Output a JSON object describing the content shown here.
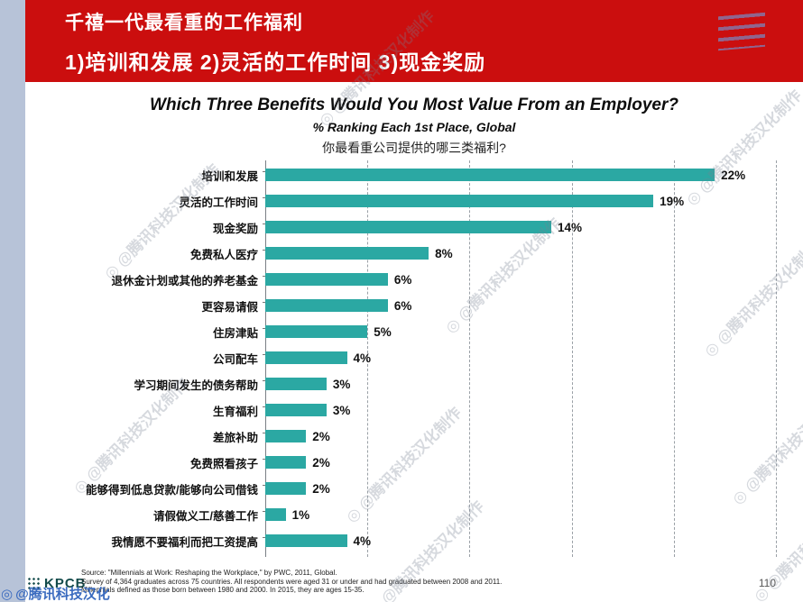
{
  "header": {
    "title": "千禧一代最看重的工作福利",
    "subtitle": "1)培训和发展 2)灵活的工作时间 3)现金奖励"
  },
  "chart": {
    "title": "Which Three Benefits Would You Most Value From an Employer?",
    "subtitle": "% Ranking Each 1st Place, Global",
    "subtitle_cn": "你最看重公司提供的哪三类福利?"
  },
  "chart_data": {
    "type": "bar",
    "orientation": "horizontal",
    "title": "Which Three Benefits Would You Most Value From an Employer?",
    "subtitle": "% Ranking Each 1st Place, Global",
    "categories": [
      "培训和发展",
      "灵活的工作时间",
      "现金奖励",
      "免费私人医疗",
      "退休金计划或其他的养老基金",
      "更容易请假",
      "住房津贴",
      "公司配车",
      "学习期间发生的债务帮助",
      "生育福利",
      "差旅补助",
      "免费照看孩子",
      "能够得到低息贷款/能够向公司借钱",
      "请假做义工/慈善工作",
      "我情愿不要福利而把工资提高"
    ],
    "values": [
      22,
      19,
      14,
      8,
      6,
      6,
      5,
      4,
      3,
      3,
      2,
      2,
      2,
      1,
      4
    ],
    "value_labels": [
      "22%",
      "19%",
      "14%",
      "8%",
      "6%",
      "6%",
      "5%",
      "4%",
      "3%",
      "3%",
      "2%",
      "2%",
      "2%",
      "1%",
      "4%"
    ],
    "xlim": [
      0,
      25
    ],
    "gridlines": [
      0,
      5,
      10,
      15,
      20,
      25
    ],
    "grid": true,
    "legend": false,
    "bar_color": "#2ba8a3"
  },
  "footer": {
    "source_lines": [
      "Source: \"Millennials at Work: Reshaping the Workplace,\" by PWC, 2011, Global.",
      "Survey of 4,364 graduates across 75 countries. All respondents were aged 31 or under and had graduated between 2008 and 2011.",
      "Millennials defined as those born between 1980 and 2000. In 2015, they are ages 15-35."
    ],
    "logo_text": "KPCB",
    "page_number": "110"
  },
  "watermark": {
    "text": "@腾讯科技汉化制作",
    "corner_text": "@腾讯科技汉化"
  }
}
